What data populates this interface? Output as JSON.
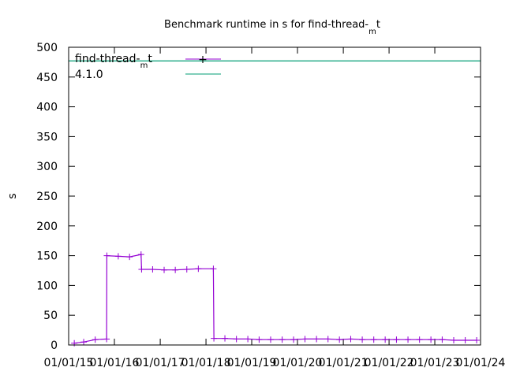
{
  "chart_data": {
    "type": "line",
    "title": {
      "prefix": "Benchmark runtime in s for find-thread-",
      "sub": "m",
      "suffix": "t"
    },
    "ylabel": "s",
    "xlabel": "",
    "ylim": [
      0,
      500
    ],
    "y_ticks": [
      0,
      50,
      100,
      150,
      200,
      250,
      300,
      350,
      400,
      450,
      500
    ],
    "x_ticks": [
      "01/01/15",
      "01/01/16",
      "01/01/17",
      "01/01/18",
      "01/01/19",
      "01/01/20",
      "01/01/21",
      "01/01/22",
      "01/01/23",
      "01/01/24"
    ],
    "xlim": [
      "2015-01-01",
      "2024-01-01"
    ],
    "grid": false,
    "legend_position": "top-left",
    "series": [
      {
        "name": {
          "prefix": "find-thread-",
          "sub": "m",
          "suffix": "t"
        },
        "color": "#9400d3",
        "marker": "plus",
        "x": [
          "2015-02-15",
          "2015-05-01",
          "2015-08-01",
          "2015-10-31",
          "2015-11-02",
          "2016-02-01",
          "2016-05-01",
          "2016-08-01",
          "2016-08-05",
          "2016-11-01",
          "2017-02-01",
          "2017-05-01",
          "2017-08-01",
          "2017-11-01",
          "2018-03-01",
          "2018-03-05",
          "2018-06-01",
          "2018-09-01",
          "2018-12-01",
          "2019-03-01",
          "2019-06-01",
          "2019-09-01",
          "2019-12-01",
          "2020-03-01",
          "2020-06-01",
          "2020-09-01",
          "2020-12-01",
          "2021-03-01",
          "2021-06-01",
          "2021-09-01",
          "2021-12-01",
          "2022-03-01",
          "2022-06-01",
          "2022-09-01",
          "2022-12-01",
          "2023-03-01",
          "2023-06-01",
          "2023-09-01",
          "2023-12-01"
        ],
        "y": [
          3,
          5,
          9,
          10,
          150,
          149,
          148,
          152,
          127,
          127,
          126,
          126,
          127,
          128,
          128,
          11,
          11,
          10,
          10,
          9,
          9,
          9,
          9,
          10,
          10,
          10,
          9,
          10,
          9,
          9,
          9,
          9,
          9,
          9,
          9,
          9,
          8,
          8,
          8
        ]
      },
      {
        "name": "4.1.0",
        "color": "#009e73",
        "marker": "none",
        "x": [
          "2015-01-01",
          "2024-01-01"
        ],
        "y": [
          477,
          477
        ]
      }
    ]
  }
}
